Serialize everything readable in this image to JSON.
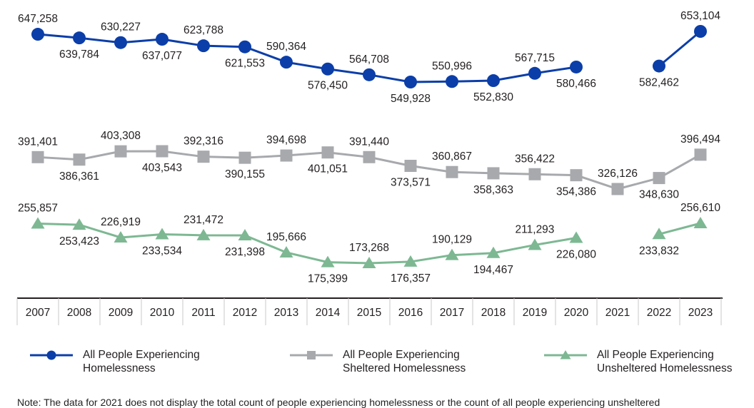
{
  "chart_data": {
    "type": "line",
    "x": [
      "2007",
      "2008",
      "2009",
      "2010",
      "2011",
      "2012",
      "2013",
      "2014",
      "2015",
      "2016",
      "2017",
      "2018",
      "2019",
      "2020",
      "2021",
      "2022",
      "2023"
    ],
    "series": [
      {
        "name": "All People Experiencing\nHomelessness",
        "color": "#0b3ea8",
        "marker": "circle",
        "values": [
          647258,
          639784,
          630227,
          637077,
          623788,
          621553,
          590364,
          576450,
          564708,
          549928,
          550996,
          552830,
          567715,
          580466,
          null,
          582462,
          653104
        ],
        "labels": [
          "647,258",
          "639,784",
          "630,227",
          "637,077",
          "623,788",
          "621,553",
          "590,364",
          "576,450",
          "564,708",
          "549,928",
          "550,996",
          "552,830",
          "567,715",
          "580,466",
          null,
          "582,462",
          "653,104"
        ]
      },
      {
        "name": "All People Experiencing\nSheltered Homelessness",
        "color": "#a7a9ac",
        "marker": "square",
        "values": [
          391401,
          386361,
          403308,
          403543,
          392316,
          390155,
          394698,
          401051,
          391440,
          373571,
          360867,
          358363,
          356422,
          354386,
          326126,
          348630,
          396494
        ],
        "labels": [
          "391,401",
          "386,361",
          "403,308",
          "403,543",
          "392,316",
          "390,155",
          "394,698",
          "401,051",
          "391,440",
          "373,571",
          "360,867",
          "358,363",
          "356,422",
          "354,386",
          "326,126",
          "348,630",
          "396,494"
        ]
      },
      {
        "name": "All People Experiencing\nUnsheltered Homelessness",
        "color": "#7db893",
        "marker": "triangle",
        "values": [
          255857,
          253423,
          226919,
          233534,
          231472,
          231398,
          195666,
          175399,
          173268,
          176357,
          190129,
          194467,
          211293,
          226080,
          null,
          233832,
          256610
        ],
        "labels": [
          "255,857",
          "253,423",
          "226,919",
          "233,534",
          "231,472",
          "231,398",
          "195,666",
          "175,399",
          "173,268",
          "176,357",
          "190,129",
          "194,467",
          "211,293",
          "226,080",
          null,
          "233,832",
          "256,610"
        ]
      }
    ],
    "legend_position": "bottom",
    "grid": false
  },
  "note": "Note: The data for 2021 does not display the total count of people experiencing homelessness or the count of all people experiencing unsheltered"
}
